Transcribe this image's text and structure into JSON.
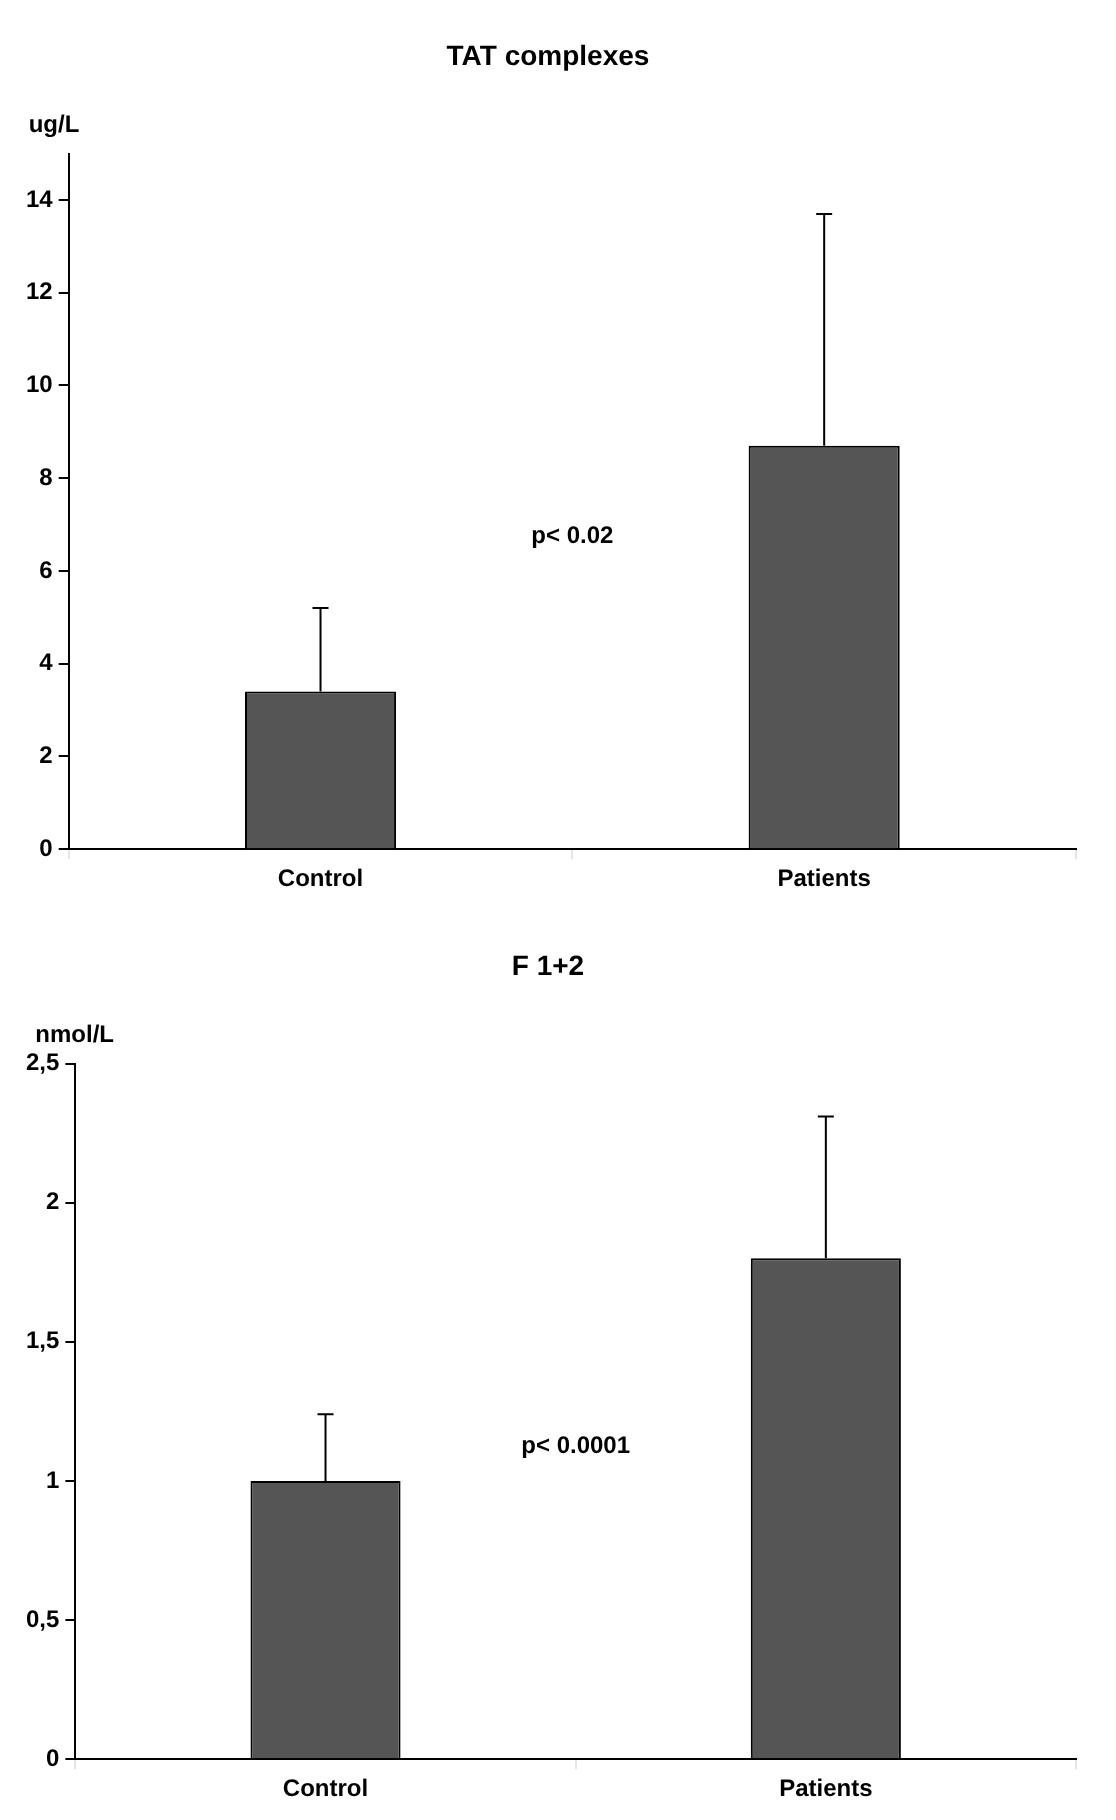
{
  "chart_data": [
    {
      "type": "bar",
      "title": "TAT complexes",
      "ylabel": "ug/L",
      "categories": [
        "Control",
        "Patients"
      ],
      "values": [
        3.4,
        8.7
      ],
      "color": "#555555",
      "errors": [
        [
          3.4,
          5.2
        ],
        [
          8.7,
          13.7
        ]
      ],
      "ylim": [
        0,
        15
      ],
      "yticks": [
        0,
        2,
        4,
        6,
        8,
        10,
        12,
        14
      ],
      "annotations": [
        "p< 0.02"
      ]
    },
    {
      "type": "bar",
      "title": "F 1+2",
      "ylabel": "nmol/L",
      "categories": [
        "Control",
        "Patients"
      ],
      "values": [
        1.0,
        1.8
      ],
      "color": "#555555",
      "errors": [
        [
          1.0,
          1.24
        ],
        [
          1.8,
          2.31
        ]
      ],
      "ylim": [
        0,
        2.5
      ],
      "yticks": [
        0,
        {
          "value": 0.5,
          "label": "0,5"
        },
        1,
        {
          "value": 1.5,
          "label": "1,5"
        },
        2,
        {
          "value": 2.5,
          "label": "2,5"
        }
      ],
      "annotations": [
        "p< 0.0001"
      ]
    }
  ]
}
